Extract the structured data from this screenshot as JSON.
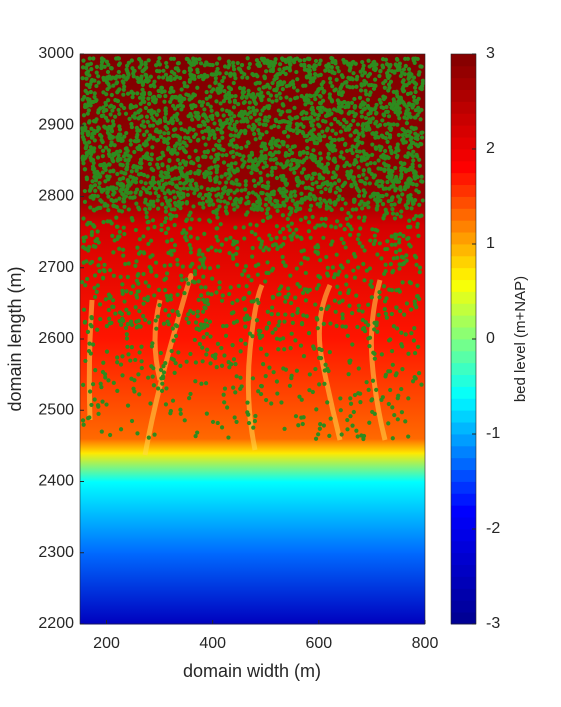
{
  "chart_data": {
    "type": "field",
    "xlabel": "domain width (m)",
    "ylabel": "domain length (m)",
    "xlim": [
      150,
      800
    ],
    "xticks": [
      200,
      400,
      600,
      800
    ],
    "ylim": [
      2200,
      3000
    ],
    "yticks": [
      2200,
      2300,
      2400,
      2500,
      2600,
      2700,
      2800,
      2900,
      3000
    ],
    "profile": {
      "y": [
        2200,
        2300,
        2400,
        2440,
        2460,
        2600,
        2760,
        2800,
        3000
      ],
      "levels": [
        -2.5,
        -1.3,
        -0.6,
        0.7,
        1.3,
        1.7,
        2.2,
        2.8,
        3
      ]
    },
    "vegetation_color": "#2e8b1e",
    "colorbar": {
      "label": "bed level (m+NAP)",
      "lim": [
        -3,
        3
      ],
      "ticks": [
        -3,
        -2,
        -1,
        0,
        1,
        2,
        3
      ],
      "colormap": [
        "#00008f",
        "#0000ff",
        "#00ffff",
        "#ffff00",
        "#ff0000",
        "#800000"
      ]
    }
  }
}
